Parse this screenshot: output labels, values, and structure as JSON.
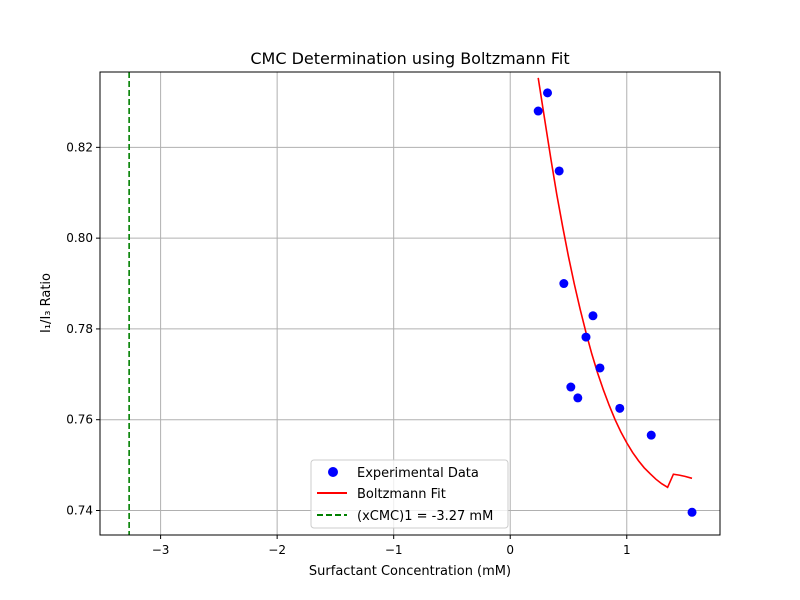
{
  "chart_data": {
    "type": "scatter",
    "title": "CMC Determination using Boltzmann Fit",
    "xlabel": "Surfactant Concentration (mM)",
    "ylabel": "I₁/I₃ Ratio",
    "xlim": [
      -3.52,
      1.8
    ],
    "ylim": [
      0.7346,
      0.8366
    ],
    "xticks": [
      -3,
      -2,
      -1,
      0,
      1
    ],
    "xtick_labels": [
      "−3",
      "−2",
      "−1",
      "0",
      "1"
    ],
    "yticks": [
      0.74,
      0.76,
      0.78,
      0.8,
      0.82
    ],
    "ytick_labels": [
      "0.74",
      "0.76",
      "0.78",
      "0.80",
      "0.82"
    ],
    "grid": true,
    "legend_position": "lower-center",
    "series": [
      {
        "name": "Experimental Data",
        "kind": "scatter",
        "color": "#0000ff",
        "x": [
          0.24,
          0.32,
          0.42,
          0.46,
          0.52,
          0.58,
          0.65,
          0.71,
          0.77,
          0.94,
          1.21,
          1.56
        ],
        "y": [
          0.828,
          0.832,
          0.8148,
          0.79,
          0.7672,
          0.7648,
          0.7782,
          0.7829,
          0.7714,
          0.7625,
          0.7566,
          0.7396
        ]
      },
      {
        "name": "Boltzmann Fit",
        "kind": "line",
        "color": "#ff0000",
        "x": [
          0.24,
          0.3,
          0.35,
          0.4,
          0.45,
          0.5,
          0.55,
          0.6,
          0.65,
          0.7,
          0.75,
          0.8,
          0.85,
          0.9,
          0.95,
          1.0,
          1.05,
          1.1,
          1.15,
          1.2,
          1.25,
          1.3,
          1.35,
          1.4,
          1.45,
          1.5,
          1.56
        ],
        "y": [
          0.8353,
          0.8254,
          0.8173,
          0.8096,
          0.8025,
          0.7959,
          0.7899,
          0.7843,
          0.7792,
          0.7745,
          0.7703,
          0.7665,
          0.7631,
          0.76,
          0.7573,
          0.7549,
          0.7528,
          0.751,
          0.7494,
          0.7481,
          0.7469,
          0.7459,
          0.7451,
          0.748,
          0.7478,
          0.7475,
          0.7471
        ]
      },
      {
        "name": "(xCMC)1 = -3.27 mM",
        "kind": "vline",
        "color": "#008000",
        "x": -3.27
      }
    ]
  }
}
